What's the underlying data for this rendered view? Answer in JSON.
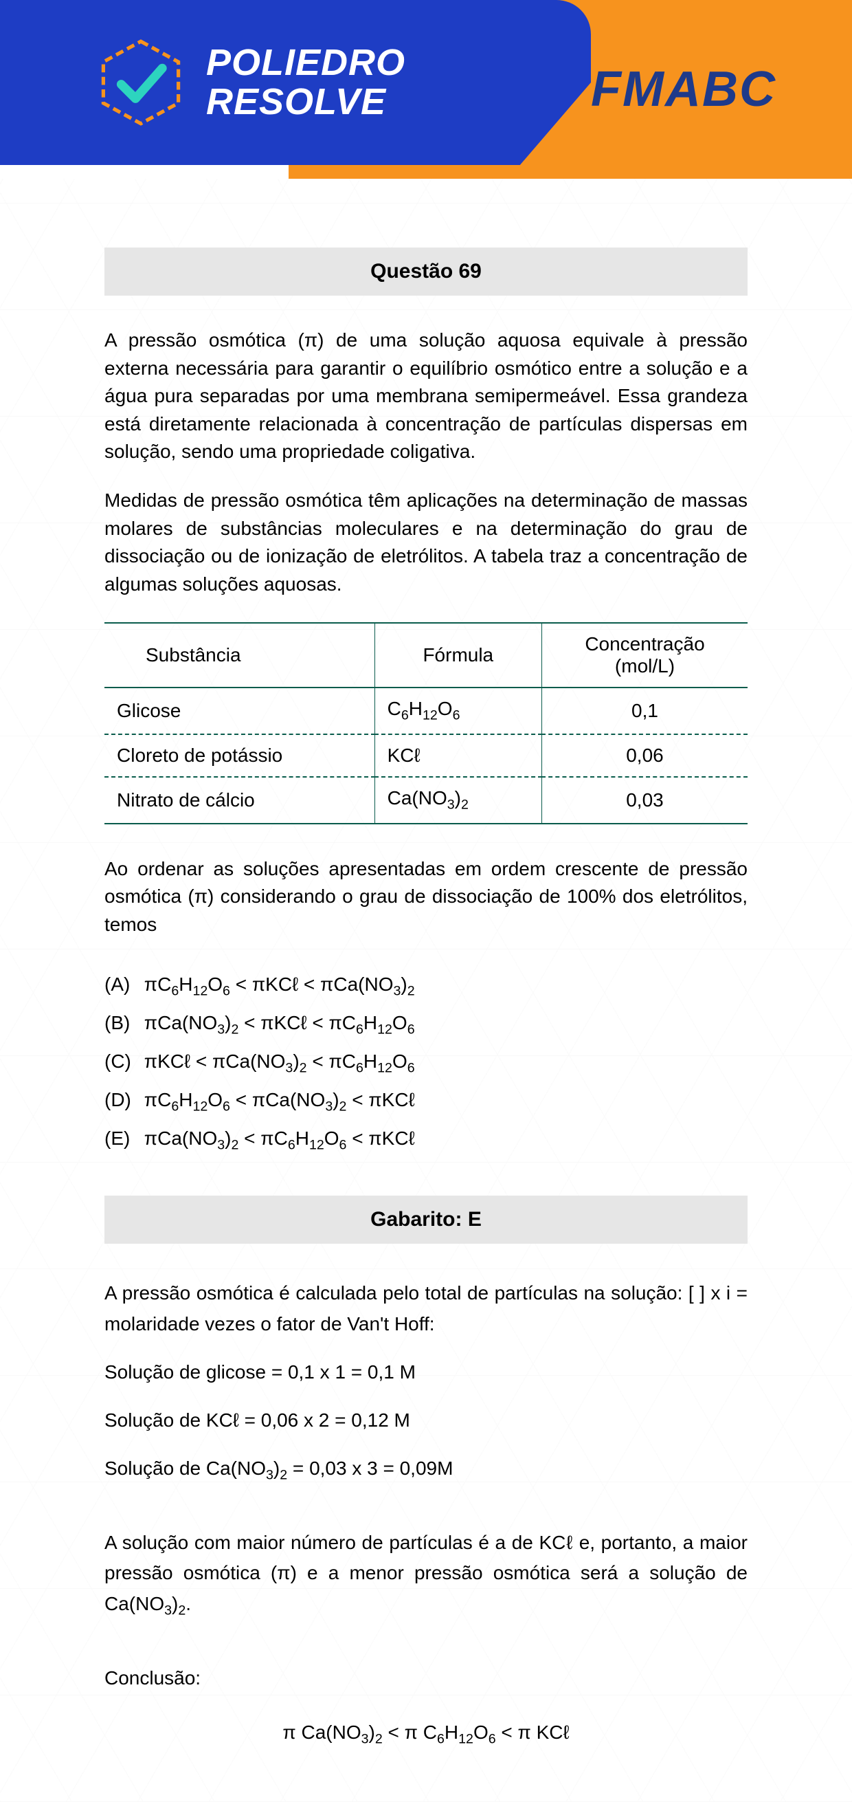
{
  "colors": {
    "blue": "#1e3dc4",
    "orange": "#f7931e",
    "darkblue_text": "#1e3a8a",
    "teal_check": "#2dd4bf",
    "teal_border": "#0a5c4c",
    "grey_box": "#e6e6e6"
  },
  "brand": {
    "line1": "POLIEDRO",
    "line2": "RESOLVE"
  },
  "exam_tag": "FMABC",
  "question_header": "Questão 69",
  "paragraphs": {
    "p1": "A pressão osmótica (π) de uma solução aquosa equivale à pressão externa necessária para garantir o equilíbrio osmótico entre a solução e a água pura separadas por uma membrana semipermeável. Essa grandeza está diretamente relacionada à concentração de partículas dispersas em solução, sendo uma propriedade coligativa.",
    "p2": "Medidas de pressão osmótica têm aplicações na determinação de massas molares de substâncias moleculares e na determinação do grau de dissociação ou de ionização de eletrólitos. A tabela traz a concentração de algumas soluções aquosas."
  },
  "table": {
    "headers": {
      "c1": "Substância",
      "c2": "Fórmula",
      "c3": "Concentração (mol/L)"
    },
    "rows": [
      {
        "sub": "Glicose",
        "formula_html": "C<sub>6</sub>H<sub>12</sub>O<sub>6</sub>",
        "conc": "0,1"
      },
      {
        "sub": "Cloreto de potássio",
        "formula_html": "KCℓ",
        "conc": "0,06"
      },
      {
        "sub": "Nitrato de cálcio",
        "formula_html": "Ca(NO<sub>3</sub>)<sub>2</sub>",
        "conc": "0,03"
      }
    ]
  },
  "stem_after_table": "Ao ordenar as soluções apresentadas em ordem crescente de pressão osmótica (π) considerando o grau de dissociação de 100% dos eletrólitos, temos",
  "options": [
    {
      "label": "(A)",
      "html": "πC<sub>6</sub>H<sub>12</sub>O<sub>6</sub> &lt; πKCℓ &lt; πCa(NO<sub>3</sub>)<sub>2</sub>"
    },
    {
      "label": "(B)",
      "html": "πCa(NO<sub>3</sub>)<sub>2</sub> &lt; πKCℓ &lt; πC<sub>6</sub>H<sub>12</sub>O<sub>6</sub>"
    },
    {
      "label": "(C)",
      "html": "πKCℓ &lt; πCa(NO<sub>3</sub>)<sub>2</sub> &lt; πC<sub>6</sub>H<sub>12</sub>O<sub>6</sub>"
    },
    {
      "label": "(D)",
      "html": "πC<sub>6</sub>H<sub>12</sub>O<sub>6</sub> &lt; πCa(NO<sub>3</sub>)<sub>2</sub> &lt; πKCℓ"
    },
    {
      "label": "(E)",
      "html": "πCa(NO<sub>3</sub>)<sub>2</sub> &lt; πC<sub>6</sub>H<sub>12</sub>O<sub>6</sub> &lt; πKCℓ"
    }
  ],
  "answer_header": "Gabarito: E",
  "solution": {
    "intro": "A pressão osmótica é calculada pelo total de partículas na solução: [  ] x i = molaridade vezes o fator de Van't Hoff:",
    "lines": [
      "Solução de glicose = 0,1 x 1 = 0,1 M",
      "Solução de KCℓ = 0,06 x 2 = 0,12 M"
    ],
    "line3_html": "Solução de Ca(NO<sub>3</sub>)<sub>2</sub> = 0,03 x 3 = 0,09M",
    "conclusion_text_html": "A solução com maior número de partículas é a de KCℓ e, portanto, a maior pressão osmótica (π) e a menor pressão osmótica será a solução de Ca(NO<sub>3</sub>)<sub>2</sub>.",
    "conclusion_label": "Conclusão:",
    "conclusion_eq_html": "π Ca(NO<sub>3</sub>)<sub>2</sub> &lt;  π C<sub>6</sub>H<sub>12</sub>O<sub>6</sub> &lt;  π KCℓ"
  }
}
